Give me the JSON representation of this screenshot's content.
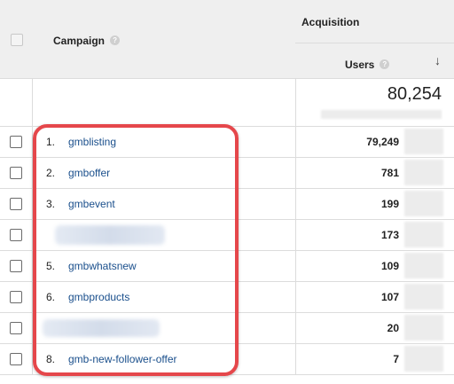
{
  "header": {
    "campaign_label": "Campaign",
    "acquisition_label": "Acquisition",
    "users_label": "Users",
    "help_glyph": "?",
    "sort_glyph": "↓"
  },
  "total": {
    "users": "80,254"
  },
  "rows": [
    {
      "index": "1.",
      "campaign": "gmblisting",
      "users": "79,249"
    },
    {
      "index": "2.",
      "campaign": "gmboffer",
      "users": "781"
    },
    {
      "index": "3.",
      "campaign": "gmbevent",
      "users": "199"
    },
    {
      "index": "",
      "campaign": "",
      "users": "173"
    },
    {
      "index": "5.",
      "campaign": "gmbwhatsnew",
      "users": "109"
    },
    {
      "index": "6.",
      "campaign": "gmbproducts",
      "users": "107"
    },
    {
      "index": "",
      "campaign": "",
      "users": "20"
    },
    {
      "index": "8.",
      "campaign": "gmb-new-follower-offer",
      "users": "7"
    }
  ],
  "colors": {
    "link": "#1a4f8c",
    "highlight": "#e5474b",
    "header_bg": "#efefef"
  }
}
